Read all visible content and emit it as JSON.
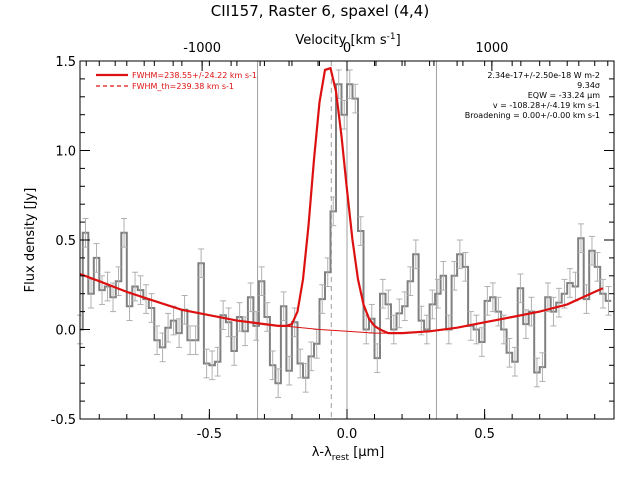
{
  "chart_data": {
    "type": "line",
    "title": "CII157, Raster 6, spaxel (4,4)",
    "xlabel": "λ-λrest [μm]",
    "xlabel_parts": {
      "main": "λ-λ",
      "sub": "rest",
      "unit": " [μm]"
    },
    "ylabel": "Flux density [Jy]",
    "top_axis_label": "Velocity [km s-1]",
    "top_axis_label_parts": {
      "main": "Velocity [km s",
      "sup": "-1",
      "end": "]"
    },
    "xlim": [
      -0.97,
      0.97
    ],
    "ylim": [
      -0.5,
      1.5
    ],
    "x_ticks": [
      -0.5,
      0.0,
      0.5
    ],
    "x_tick_labels": [
      "-0.5",
      "0.0",
      "0.5"
    ],
    "y_ticks": [
      -0.5,
      0.0,
      0.5,
      1.0,
      1.5
    ],
    "y_tick_labels": [
      "-0.5",
      "0.0",
      "0.5",
      "1.0",
      "1.5"
    ],
    "top_ticks": [
      -1000,
      0,
      1000
    ],
    "top_tick_labels": [
      "-1000",
      "0",
      "1000"
    ],
    "velocity_per_micron": 1900,
    "grid": false,
    "vertical_lines": [
      -0.325,
      0.0,
      0.325
    ],
    "center_dashed_line": -0.057,
    "legend_position": "top-left",
    "legend": [
      {
        "label": "FWHM=238.55+/-24.22 km s-1",
        "style": "solid"
      },
      {
        "label": "FWHM_th=239.38 km s-1",
        "style": "dashed"
      }
    ],
    "annotations": [
      "2.34e-17+/-2.50e-18 W m-2",
      "9.34σ",
      "EQW = -33.24 μm",
      "v = -108.28+/-4.19 km s-1",
      "Broadening = 0.00+/-0.00 km s-1"
    ],
    "colors": {
      "data": "#808080",
      "fit": "#dd1111",
      "vlines": "#a0a0a0"
    },
    "series": [
      {
        "type": "step",
        "x": [
          -0.97,
          -0.95,
          -0.93,
          -0.91,
          -0.89,
          -0.87,
          -0.85,
          -0.83,
          -0.81,
          -0.79,
          -0.77,
          -0.75,
          -0.73,
          -0.71,
          -0.69,
          -0.67,
          -0.65,
          -0.63,
          -0.61,
          -0.59,
          -0.57,
          -0.55,
          -0.53,
          -0.51,
          -0.49,
          -0.47,
          -0.45,
          -0.43,
          -0.41,
          -0.39,
          -0.37,
          -0.35,
          -0.33,
          -0.31,
          -0.29,
          -0.27,
          -0.25,
          -0.23,
          -0.21,
          -0.19,
          -0.17,
          -0.15,
          -0.13,
          -0.11,
          -0.09,
          -0.07,
          -0.05,
          -0.03,
          -0.01,
          0.01,
          0.03,
          0.05,
          0.07,
          0.09,
          0.11,
          0.13,
          0.15,
          0.17,
          0.19,
          0.21,
          0.23,
          0.25,
          0.27,
          0.29,
          0.31,
          0.33,
          0.35,
          0.37,
          0.39,
          0.41,
          0.43,
          0.45,
          0.47,
          0.49,
          0.51,
          0.53,
          0.55,
          0.57,
          0.59,
          0.61,
          0.63,
          0.65,
          0.67,
          0.69,
          0.71,
          0.73,
          0.75,
          0.77,
          0.79,
          0.81,
          0.83,
          0.85,
          0.87,
          0.89,
          0.91,
          0.93,
          0.95
        ],
        "values": [
          0.0,
          0.54,
          0.2,
          0.4,
          0.22,
          0.24,
          0.18,
          0.27,
          0.54,
          0.13,
          0.24,
          0.22,
          0.17,
          0.12,
          -0.06,
          -0.1,
          0.01,
          0.05,
          -0.02,
          0.11,
          -0.06,
          -0.06,
          0.37,
          -0.19,
          -0.2,
          -0.18,
          0.08,
          0.04,
          -0.12,
          0.07,
          -0.01,
          0.18,
          0.02,
          0.27,
          0.07,
          -0.2,
          -0.3,
          0.13,
          -0.23,
          0.04,
          -0.19,
          -0.27,
          -0.15,
          -0.08,
          0.17,
          0.32,
          0.66,
          1.37,
          1.2,
          1.37,
          1.29,
          0.55,
          0.0,
          0.06,
          -0.16,
          0.2,
          0.14,
          0.0,
          0.09,
          0.13,
          0.27,
          0.42,
          0.05,
          0.0,
          0.14,
          0.2,
          0.3,
          0.0,
          0.3,
          0.42,
          0.35,
          0.02,
          0.0,
          -0.07,
          0.16,
          0.18,
          0.1,
          0.0,
          -0.13,
          -0.18,
          0.23,
          0.03,
          0.1,
          -0.24,
          -0.21,
          0.18,
          0.1,
          0.15,
          0.2,
          0.26,
          0.24,
          0.51,
          0.17,
          0.44,
          0.35,
          0.2,
          0.16
        ],
        "error": 0.08
      },
      {
        "type": "curve",
        "name": "fit",
        "x": [
          -0.97,
          -0.9,
          -0.8,
          -0.7,
          -0.6,
          -0.5,
          -0.4,
          -0.3,
          -0.25,
          -0.22,
          -0.2,
          -0.18,
          -0.16,
          -0.14,
          -0.12,
          -0.1,
          -0.08,
          -0.06,
          -0.04,
          -0.02,
          0.0,
          0.02,
          0.04,
          0.06,
          0.08,
          0.1,
          0.12,
          0.15,
          0.2,
          0.3,
          0.4,
          0.5,
          0.6,
          0.7,
          0.8,
          0.9,
          0.93
        ],
        "values": [
          0.31,
          0.27,
          0.21,
          0.16,
          0.11,
          0.08,
          0.05,
          0.03,
          0.02,
          0.02,
          0.03,
          0.1,
          0.28,
          0.58,
          0.95,
          1.27,
          1.45,
          1.46,
          1.33,
          1.08,
          0.78,
          0.5,
          0.28,
          0.14,
          0.06,
          0.02,
          0.0,
          -0.02,
          -0.02,
          -0.01,
          0.01,
          0.04,
          0.07,
          0.1,
          0.14,
          0.21,
          0.23
        ]
      },
      {
        "type": "curve",
        "name": "baseline",
        "x": [
          -0.97,
          -0.9,
          -0.8,
          -0.7,
          -0.6,
          -0.5,
          -0.4,
          -0.3,
          -0.2,
          -0.1,
          0.0,
          0.1,
          0.2,
          0.3,
          0.4,
          0.5,
          0.6,
          0.7,
          0.8,
          0.9,
          0.93
        ],
        "values": [
          0.31,
          0.27,
          0.21,
          0.16,
          0.11,
          0.08,
          0.05,
          0.03,
          0.015,
          0.0,
          -0.01,
          -0.02,
          -0.02,
          -0.01,
          0.01,
          0.04,
          0.07,
          0.1,
          0.14,
          0.21,
          0.23
        ]
      }
    ]
  }
}
